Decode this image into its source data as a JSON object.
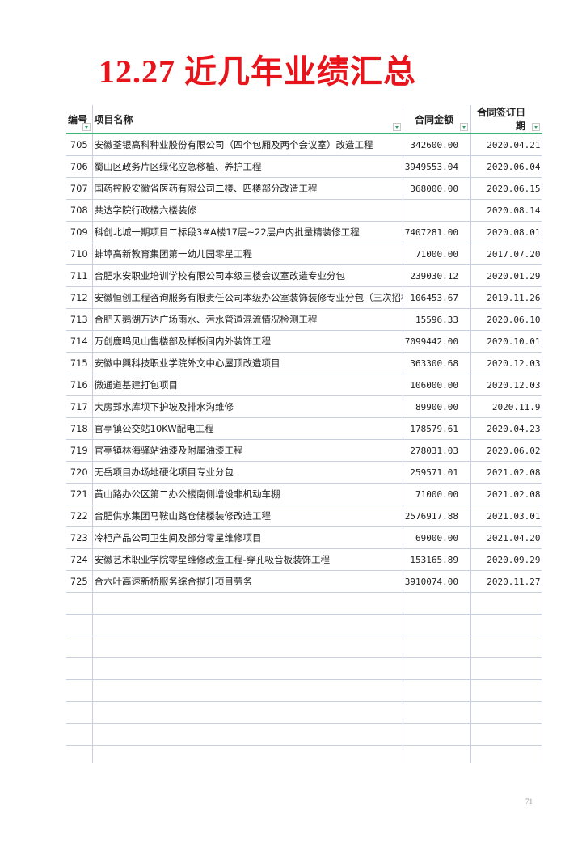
{
  "title": "12.27  近几年业绩汇总",
  "table": {
    "headers": [
      "编号",
      "项目名称",
      "合同金额",
      "合同签订日期"
    ],
    "rows": [
      {
        "no": "705",
        "name": "安徽荃银高科种业股份有限公司（四个包厢及两个会议室）改造工程",
        "amount": "342600.00",
        "date": "2020.04.21"
      },
      {
        "no": "706",
        "name": "蜀山区政务片区绿化应急移植、养护工程",
        "amount": "3949553.04",
        "date": "2020.06.04"
      },
      {
        "no": "707",
        "name": "国药控股安徽省医药有限公司二楼、四楼部分改造工程",
        "amount": "368000.00",
        "date": "2020.06.15"
      },
      {
        "no": "708",
        "name": "共达学院行政楼六楼装修",
        "amount": "",
        "date": "2020.08.14"
      },
      {
        "no": "709",
        "name": "科创北城一期项目二标段3#A楼17层~22层户内批量精装修工程",
        "amount": "7407281.00",
        "date": "2020.08.01"
      },
      {
        "no": "710",
        "name": "蚌埠高新教育集团第一幼儿园零星工程",
        "amount": "71000.00",
        "date": "2017.07.20"
      },
      {
        "no": "711",
        "name": "合肥水安职业培训学校有限公司本级三楼会议室改造专业分包",
        "amount": "239030.12",
        "date": "2020.01.29"
      },
      {
        "no": "712",
        "name": "安徽恒创工程咨询服务有限责任公司本级办公室装饰装修专业分包（三次招标）",
        "amount": "106453.67",
        "date": "2019.11.26"
      },
      {
        "no": "713",
        "name": "合肥天鹅湖万达广场雨水、污水管道混流情况检测工程",
        "amount": "15596.33",
        "date": "2020.06.10"
      },
      {
        "no": "714",
        "name": "万创鹿鸣见山售楼部及样板间内外装饰工程",
        "amount": "7099442.00",
        "date": "2020.10.01"
      },
      {
        "no": "715",
        "name": "安徽中興科技职业学院外文中心屋顶改造项目",
        "amount": "363300.68",
        "date": "2020.12.03"
      },
      {
        "no": "716",
        "name": "微通道基建打包项目",
        "amount": "106000.00",
        "date": "2020.12.03"
      },
      {
        "no": "717",
        "name": "大房郢水库坝下护坡及排水沟维修",
        "amount": "89900.00",
        "date": "2020.11.9"
      },
      {
        "no": "718",
        "name": "官亭镇公交站10KW配电工程",
        "amount": "178579.61",
        "date": "2020.04.23"
      },
      {
        "no": "719",
        "name": "官亭镇林海驿站油漆及附属油漆工程",
        "amount": "278031.03",
        "date": "2020.06.02"
      },
      {
        "no": "720",
        "name": "无岳项目办场地硬化项目专业分包",
        "amount": "259571.01",
        "date": "2021.02.08"
      },
      {
        "no": "721",
        "name": "黄山路办公区第二办公楼南侧增设非机动车棚",
        "amount": "71000.00",
        "date": "2021.02.08"
      },
      {
        "no": "722",
        "name": "合肥供水集团马鞍山路仓储楼装修改造工程",
        "amount": "2576917.88",
        "date": "2021.03.01"
      },
      {
        "no": "723",
        "name": "冷柜产品公司卫生间及部分零星维修项目",
        "amount": "69000.00",
        "date": "2021.04.20"
      },
      {
        "no": "724",
        "name": "安徽艺术职业学院零星维修改造工程-穿孔吸音板装饰工程",
        "amount": "153165.89",
        "date": "2020.09.29"
      },
      {
        "no": "725",
        "name": "合六叶高速新桥服务综合提升项目劳务",
        "amount": "3910074.00",
        "date": "2020.11.27"
      }
    ],
    "empty_rows": 8
  },
  "page_number": "71",
  "colors": {
    "title": "#e8141b",
    "header_rule": "#3fb57a",
    "grid": "#c9cfdc"
  }
}
